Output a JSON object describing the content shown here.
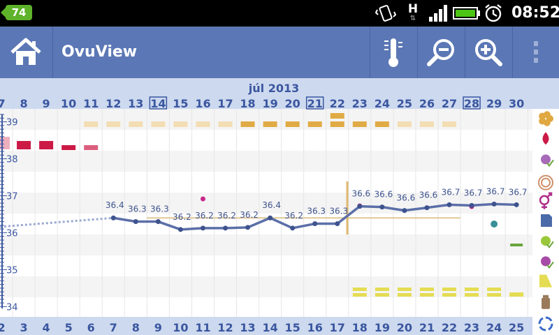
{
  "status_bar": {
    "notification_count": "74",
    "network_type": "H",
    "time": "08:52",
    "icons": [
      "battery-notification-icon",
      "vibrate-icon",
      "network-h-icon",
      "signal-icon",
      "battery-icon",
      "alarm-icon"
    ]
  },
  "action_bar": {
    "title": "OvuView",
    "buttons": [
      "home-icon",
      "thermometer-icon",
      "zoom-out-icon",
      "zoom-in-icon",
      "overflow-menu-icon"
    ]
  },
  "chart_data": {
    "type": "line",
    "month_label": "júl 2013",
    "dates": [
      "7",
      "8",
      "9",
      "10",
      "11",
      "12",
      "13",
      "14",
      "15",
      "16",
      "17",
      "18",
      "19",
      "20",
      "21",
      "22",
      "23",
      "24",
      "25",
      "26",
      "27",
      "28",
      "29",
      "30"
    ],
    "highlighted_dates": [
      "14",
      "21",
      "28"
    ],
    "cycle_days": [
      "2",
      "3",
      "4",
      "5",
      "6",
      "7",
      "8",
      "9",
      "10",
      "11",
      "12",
      "13",
      "14",
      "15",
      "16",
      "17",
      "18",
      "19",
      "20",
      "21",
      "22",
      "23",
      "24",
      "25"
    ],
    "y_ticks": [
      39,
      38,
      37,
      36,
      35,
      34
    ],
    "ylim": [
      33.95,
      39.35
    ],
    "series": [
      {
        "x": [
          "12",
          "13",
          "14",
          "15",
          "16",
          "17",
          "18",
          "19",
          "20",
          "21",
          "22",
          "23",
          "24",
          "25",
          "26",
          "27",
          "28",
          "29",
          "30"
        ],
        "values": [
          36.4,
          36.3,
          36.3,
          36.2,
          36.2,
          36.2,
          36.2,
          36.4,
          36.2,
          36.3,
          36.3,
          36.6,
          36.6,
          36.6,
          36.6,
          36.7,
          36.7,
          36.7,
          36.7
        ],
        "labels": [
          "36.4",
          "36.3",
          "36.3",
          "36.2",
          "36.2",
          "36.2",
          "36.2",
          "36.4",
          "36.2",
          "36.3",
          "36.3",
          "36.6",
          "36.6",
          "36.6",
          "36.6",
          "36.7",
          "36.7",
          "36.7",
          "36.7"
        ]
      }
    ],
    "coverline": 36.4,
    "colors": {
      "line": "#5b6fa8",
      "menstruation": "#cc1a46",
      "band_light": "#f3ddb3",
      "band_dark": "#e0ab45",
      "yellow": "#e4dc52",
      "vertical_marker": "#e0b870",
      "magenta": "#c8288a",
      "teal": "#3a8f98",
      "green": "#6aa43c",
      "blue": "#4a68a8"
    },
    "side_icons": [
      "flower-icon",
      "drop-icon",
      "splatter-icon",
      "rings-icon",
      "gender-icon",
      "note-icon",
      "pill-check-icon",
      "berry-check-icon",
      "test-strip-icon",
      "bottle-icon",
      "cycle-icon"
    ]
  }
}
